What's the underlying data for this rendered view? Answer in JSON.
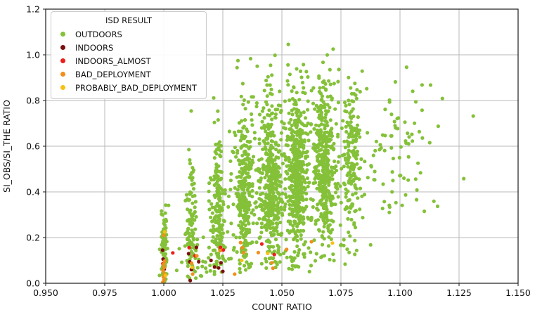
{
  "chart_data": {
    "type": "scatter",
    "title": "",
    "xlabel": "COUNT RATIO",
    "ylabel": "SI_OBS/SI_THE RATIO",
    "xlim": [
      0.95,
      1.15
    ],
    "ylim": [
      0.0,
      1.2
    ],
    "xticks": [
      "0.950",
      "0.975",
      "1.000",
      "1.025",
      "1.050",
      "1.075",
      "1.100",
      "1.125",
      "1.150"
    ],
    "xtick_values": [
      0.95,
      0.975,
      1.0,
      1.025,
      1.05,
      1.075,
      1.1,
      1.125,
      1.15
    ],
    "yticks": [
      "0.0",
      "0.2",
      "0.4",
      "0.6",
      "0.8",
      "1.0",
      "1.2"
    ],
    "ytick_values": [
      0.0,
      0.2,
      0.4,
      0.6,
      0.8,
      1.0,
      1.2
    ],
    "grid": true,
    "grid_color": "#b8b8b8",
    "spine_color": "#1a1a1a",
    "marker_radius": 2.6,
    "seed": 42,
    "legend": {
      "title": "ISD RESULT",
      "position": "upper-left",
      "items": [
        {
          "label": "OUTDOORS",
          "color": "#84c139"
        },
        {
          "label": "INDOORS",
          "color": "#7c0f0f"
        },
        {
          "label": "INDOORS_ALMOST",
          "color": "#ea1f1c"
        },
        {
          "label": "BAD_DEPLOYMENT",
          "color": "#f18e1d"
        },
        {
          "label": "PROBABLY_BAD_DEPLOYMENT",
          "color": "#f9c012"
        }
      ]
    },
    "series": [
      {
        "name": "OUTDOORS",
        "color": "#84c139",
        "clusters": [
          {
            "n": 80,
            "x": 1.0,
            "x_sigma": 0.0007,
            "y_center": 0.12,
            "y_sigma": 0.13,
            "y_min": 0.005,
            "y_max": 0.67
          },
          {
            "n": 100,
            "x": 1.0115,
            "x_sigma": 0.0012,
            "y_center": 0.22,
            "y_sigma": 0.16,
            "y_min": 0.01,
            "y_max": 0.78
          },
          {
            "n": 170,
            "x": 1.023,
            "x_sigma": 0.0015,
            "y_center": 0.3,
            "y_sigma": 0.17,
            "y_min": 0.03,
            "y_max": 0.88
          },
          {
            "n": 240,
            "x": 1.034,
            "x_sigma": 0.0017,
            "y_center": 0.38,
            "y_sigma": 0.18,
            "y_min": 0.04,
            "y_max": 0.95
          },
          {
            "n": 310,
            "x": 1.0455,
            "x_sigma": 0.0019,
            "y_center": 0.42,
            "y_sigma": 0.19,
            "y_min": 0.05,
            "y_max": 1.0
          },
          {
            "n": 350,
            "x": 1.0565,
            "x_sigma": 0.0021,
            "y_center": 0.47,
            "y_sigma": 0.2,
            "y_min": 0.06,
            "y_max": 1.05
          },
          {
            "n": 340,
            "x": 1.068,
            "x_sigma": 0.0021,
            "y_center": 0.52,
            "y_sigma": 0.19,
            "y_min": 0.08,
            "y_max": 1.0
          },
          {
            "n": 160,
            "x": 1.0795,
            "x_sigma": 0.0018,
            "y_center": 0.55,
            "y_sigma": 0.18,
            "y_min": 0.12,
            "y_max": 0.95
          },
          {
            "n": 420,
            "x": 1.052,
            "x_sigma": 0.016,
            "x_min": 1.027,
            "x_max": 1.09,
            "y_center": 0.45,
            "y_sigma": 0.22,
            "y_min": 0.05,
            "y_max": 1.0
          },
          {
            "n": 80,
            "x": 1.098,
            "x_sigma": 0.01,
            "x_min": 1.082,
            "x_max": 1.124,
            "y_center": 0.55,
            "y_sigma": 0.18,
            "y_min": 0.2,
            "y_max": 0.97
          },
          {
            "n": 40,
            "x": 1.016,
            "x_sigma": 0.009,
            "x_min": 1.002,
            "x_max": 1.03,
            "y_center": 0.12,
            "y_sigma": 0.1,
            "y_min": 0.02,
            "y_max": 0.45
          }
        ],
        "points": [
          [
            1.131,
            0.732
          ],
          [
            1.127,
            0.458
          ],
          [
            1.0527,
            1.046
          ],
          [
            1.0717,
            1.025
          ],
          [
            1.031,
            0.944
          ],
          [
            1.0452,
            0.954
          ],
          [
            1.0116,
            0.754
          ]
        ]
      },
      {
        "name": "INDOORS",
        "color": "#7c0f0f",
        "points": [
          [
            0.9995,
            0.145
          ],
          [
            0.9997,
            0.106
          ],
          [
            1.0002,
            0.062
          ],
          [
            1.0105,
            0.13
          ],
          [
            1.011,
            0.094
          ],
          [
            1.0117,
            0.06
          ],
          [
            1.0112,
            0.012
          ],
          [
            1.0148,
            0.094
          ],
          [
            1.02,
            0.1
          ],
          [
            1.0215,
            0.071
          ],
          [
            1.0232,
            0.067
          ],
          [
            1.025,
            0.052
          ],
          [
            1.0242,
            0.09
          ],
          [
            1.0138,
            0.157
          ]
        ]
      },
      {
        "name": "INDOORS_ALMOST",
        "color": "#ea1f1c",
        "points": [
          [
            0.9996,
            0.086
          ],
          [
            1.0038,
            0.133
          ],
          [
            1.0107,
            0.156
          ],
          [
            1.0132,
            0.12
          ],
          [
            1.0252,
            0.146
          ],
          [
            1.0415,
            0.172
          ],
          [
            1.0468,
            0.126
          ],
          [
            1.024,
            0.157
          ]
        ]
      },
      {
        "name": "BAD_DEPLOYMENT",
        "color": "#f18e1d",
        "points": [
          [
            0.9996,
            0.005
          ],
          [
            1.0001,
            0.016
          ],
          [
            0.9998,
            0.028
          ],
          [
            1.0003,
            0.041
          ],
          [
            0.9997,
            0.055
          ],
          [
            1.0002,
            0.069
          ],
          [
            0.9999,
            0.084
          ],
          [
            1.0004,
            0.097
          ],
          [
            1.0,
            0.21
          ],
          [
            1.0118,
            0.088
          ],
          [
            1.0122,
            0.04
          ],
          [
            1.014,
            0.12
          ],
          [
            1.0238,
            0.143
          ],
          [
            1.03,
            0.04
          ],
          [
            1.0325,
            0.178
          ],
          [
            1.0332,
            0.156
          ],
          [
            1.0338,
            0.134
          ],
          [
            1.04,
            0.134
          ],
          [
            1.0458,
            0.09
          ],
          [
            1.0462,
            0.066
          ],
          [
            1.052,
            0.148
          ],
          [
            1.0625,
            0.182
          ]
        ]
      },
      {
        "name": "PROBABLY_BAD_DEPLOYMENT",
        "color": "#f9c012",
        "points": [
          [
            1.0004,
            0.225
          ],
          [
            1.0007,
            0.034
          ],
          [
            1.012,
            0.07
          ],
          [
            1.033,
            0.1
          ],
          [
            1.044,
            0.131
          ],
          [
            1.0714,
            0.176
          ]
        ]
      }
    ]
  }
}
